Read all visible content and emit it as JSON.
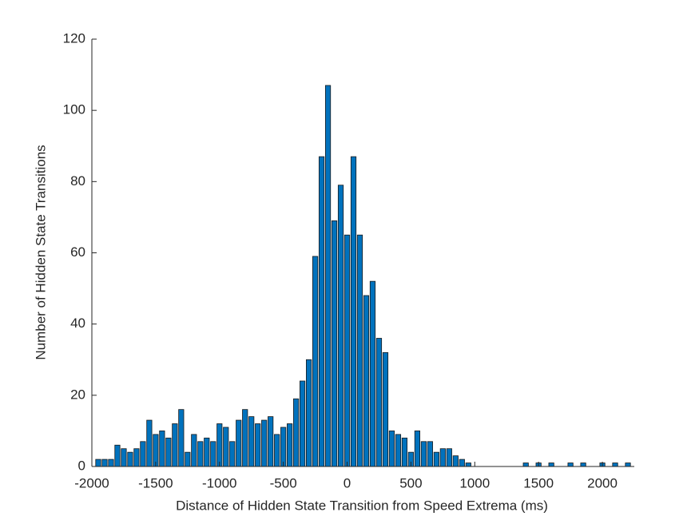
{
  "chart_data": {
    "type": "histogram",
    "xlabel": "Distance of Hidden State Transition from Speed Extrema (ms)",
    "ylabel": "Number of Hidden State Transitions",
    "bins": [
      -1975,
      -1925,
      -1875,
      -1825,
      -1775,
      -1725,
      -1675,
      -1625,
      -1575,
      -1525,
      -1475,
      -1425,
      -1375,
      -1325,
      -1275,
      -1225,
      -1175,
      -1125,
      -1075,
      -1025,
      -975,
      -925,
      -875,
      -825,
      -775,
      -725,
      -675,
      -625,
      -575,
      -525,
      -475,
      -425,
      -375,
      -325,
      -275,
      -225,
      -175,
      -125,
      -75,
      -25,
      25,
      75,
      125,
      175,
      225,
      275,
      325,
      375,
      425,
      475,
      525,
      575,
      625,
      675,
      725,
      775,
      825,
      875,
      925,
      975,
      1025,
      1075,
      1125,
      1175,
      1225,
      1275,
      1325,
      1375,
      1425,
      1475,
      1525,
      1575,
      1625,
      1675,
      1725,
      1775,
      1825,
      1875,
      1925,
      1975,
      2025,
      2075,
      2125,
      2175,
      2225
    ],
    "values": [
      2,
      2,
      2,
      6,
      5,
      4,
      5,
      7,
      13,
      9,
      10,
      8,
      12,
      16,
      4,
      9,
      7,
      8,
      7,
      12,
      11,
      7,
      13,
      16,
      14,
      12,
      13,
      14,
      9,
      11,
      12,
      19,
      24,
      30,
      59,
      87,
      107,
      69,
      79,
      65,
      87,
      65,
      48,
      52,
      36,
      32,
      10,
      9,
      8,
      4,
      10,
      7,
      7,
      4,
      5,
      5,
      3,
      2,
      1,
      0,
      0,
      0,
      0,
      0,
      0,
      0,
      0,
      1,
      0,
      1,
      0,
      1,
      0,
      0,
      1,
      0,
      1,
      0,
      0,
      1,
      0,
      1,
      0,
      1
    ],
    "color": "#0072bd",
    "xlim": [
      -2000,
      2250
    ],
    "xticks": [
      -2000,
      -1500,
      -1000,
      -500,
      0,
      500,
      1000,
      1500,
      2000
    ],
    "ylim": [
      0,
      120
    ],
    "yticks": [
      0,
      20,
      40,
      60,
      80,
      100,
      120
    ]
  }
}
